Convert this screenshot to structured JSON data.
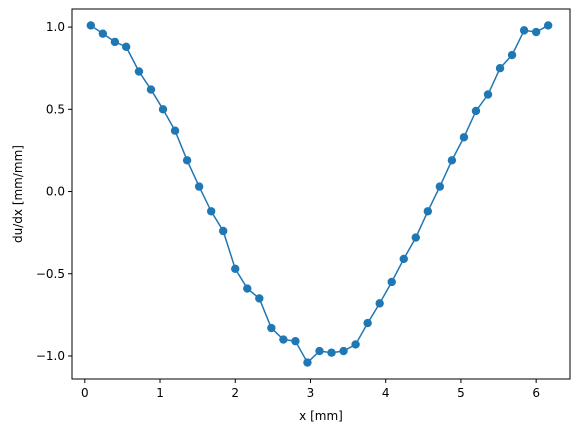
{
  "chart_data": {
    "type": "line",
    "title": "",
    "xlabel": "x [mm]",
    "ylabel": "du/dx [mm/mm]",
    "xlim": [
      -0.17,
      6.45
    ],
    "ylim": [
      -1.14,
      1.11
    ],
    "xticks": [
      0,
      1,
      2,
      3,
      4,
      5,
      6
    ],
    "xtick_labels": [
      "0",
      "1",
      "2",
      "3",
      "4",
      "5",
      "6"
    ],
    "yticks": [
      -1.0,
      -0.5,
      0.0,
      0.5,
      1.0
    ],
    "ytick_labels": [
      "−1.0",
      "−0.5",
      "0.0",
      "0.5",
      "1.0"
    ],
    "grid": false,
    "series": [
      {
        "color": "#1f77b4",
        "marker": "circle",
        "x": [
          0.08,
          0.24,
          0.4,
          0.55,
          0.72,
          0.88,
          1.04,
          1.2,
          1.36,
          1.52,
          1.68,
          1.84,
          2.0,
          2.16,
          2.32,
          2.48,
          2.64,
          2.8,
          2.96,
          3.12,
          3.28,
          3.44,
          3.6,
          3.76,
          3.92,
          4.08,
          4.24,
          4.4,
          4.56,
          4.72,
          4.88,
          5.04,
          5.2,
          5.36,
          5.52,
          5.68,
          5.84,
          6.0,
          6.16
        ],
        "y": [
          1.01,
          0.96,
          0.91,
          0.88,
          0.73,
          0.62,
          0.5,
          0.37,
          0.19,
          0.03,
          -0.12,
          -0.24,
          -0.47,
          -0.59,
          -0.65,
          -0.83,
          -0.9,
          -0.91,
          -1.04,
          -0.97,
          -0.98,
          -0.97,
          -0.93,
          -0.8,
          -0.68,
          -0.55,
          -0.41,
          -0.28,
          -0.12,
          0.03,
          0.19,
          0.33,
          0.49,
          0.59,
          0.75,
          0.83,
          0.98,
          0.97,
          1.01
        ]
      }
    ]
  }
}
